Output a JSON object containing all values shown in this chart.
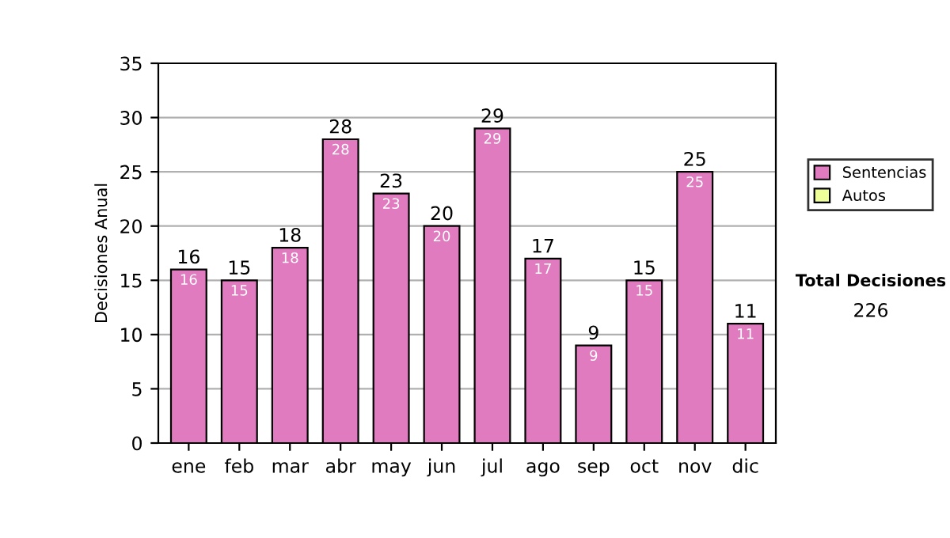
{
  "chart_data": {
    "type": "bar",
    "stacked": true,
    "ylabel": "Decisiones Anual",
    "categories": [
      "ene",
      "feb",
      "mar",
      "abr",
      "may",
      "jun",
      "jul",
      "ago",
      "sep",
      "oct",
      "nov",
      "dic"
    ],
    "series": [
      {
        "name": "Sentencias",
        "color": "#e07bbf",
        "values": [
          16,
          15,
          18,
          28,
          23,
          20,
          29,
          17,
          9,
          15,
          25,
          11
        ]
      },
      {
        "name": "Autos",
        "color": "#eeff99",
        "values": [
          null,
          null,
          null,
          null,
          null,
          null,
          null,
          null,
          null,
          null,
          null,
          null
        ]
      }
    ],
    "totals": [
      "16",
      "15",
      "18",
      "28",
      "23",
      "20",
      "29",
      "17",
      "9",
      "15",
      "25",
      "11"
    ],
    "data_labels": true,
    "ylim": [
      0,
      35
    ],
    "yticks": [
      0,
      5,
      10,
      15,
      20,
      25,
      30,
      35
    ],
    "grid": "y",
    "legend": "right",
    "annotations": [
      "Total Decisiones",
      "226"
    ]
  }
}
